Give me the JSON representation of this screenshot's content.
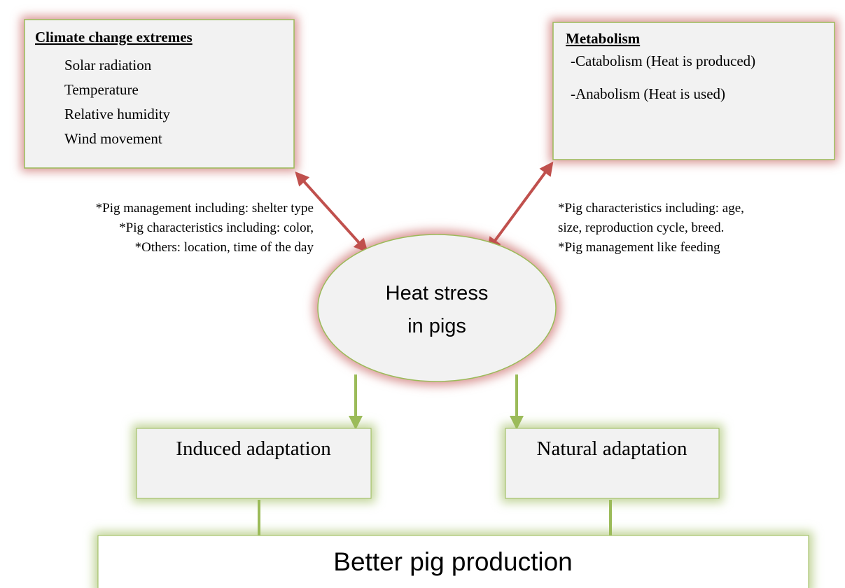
{
  "nodes": {
    "climate": {
      "title": "Climate change extremes",
      "items": [
        "Solar radiation",
        "Temperature",
        "Relative humidity",
        "Wind movement"
      ]
    },
    "metabolism": {
      "title": "Metabolism",
      "items": [
        "-Catabolism (Heat is produced)",
        "-Anabolism (Heat is used)"
      ]
    },
    "heat_stress": {
      "lines": [
        "Heat stress",
        "in pigs"
      ]
    },
    "induced": {
      "label": "Induced adaptation"
    },
    "natural": {
      "label": "Natural adaptation"
    },
    "production": {
      "label": "Better pig production"
    }
  },
  "notes": {
    "left": [
      "*Pig management including: shelter type",
      "*Pig characteristics including: color,",
      "*Others: location, time of the day"
    ],
    "right": [
      "*Pig characteristics including: age,",
      "size, reproduction cycle, breed.",
      "*Pig management like feeding"
    ]
  }
}
